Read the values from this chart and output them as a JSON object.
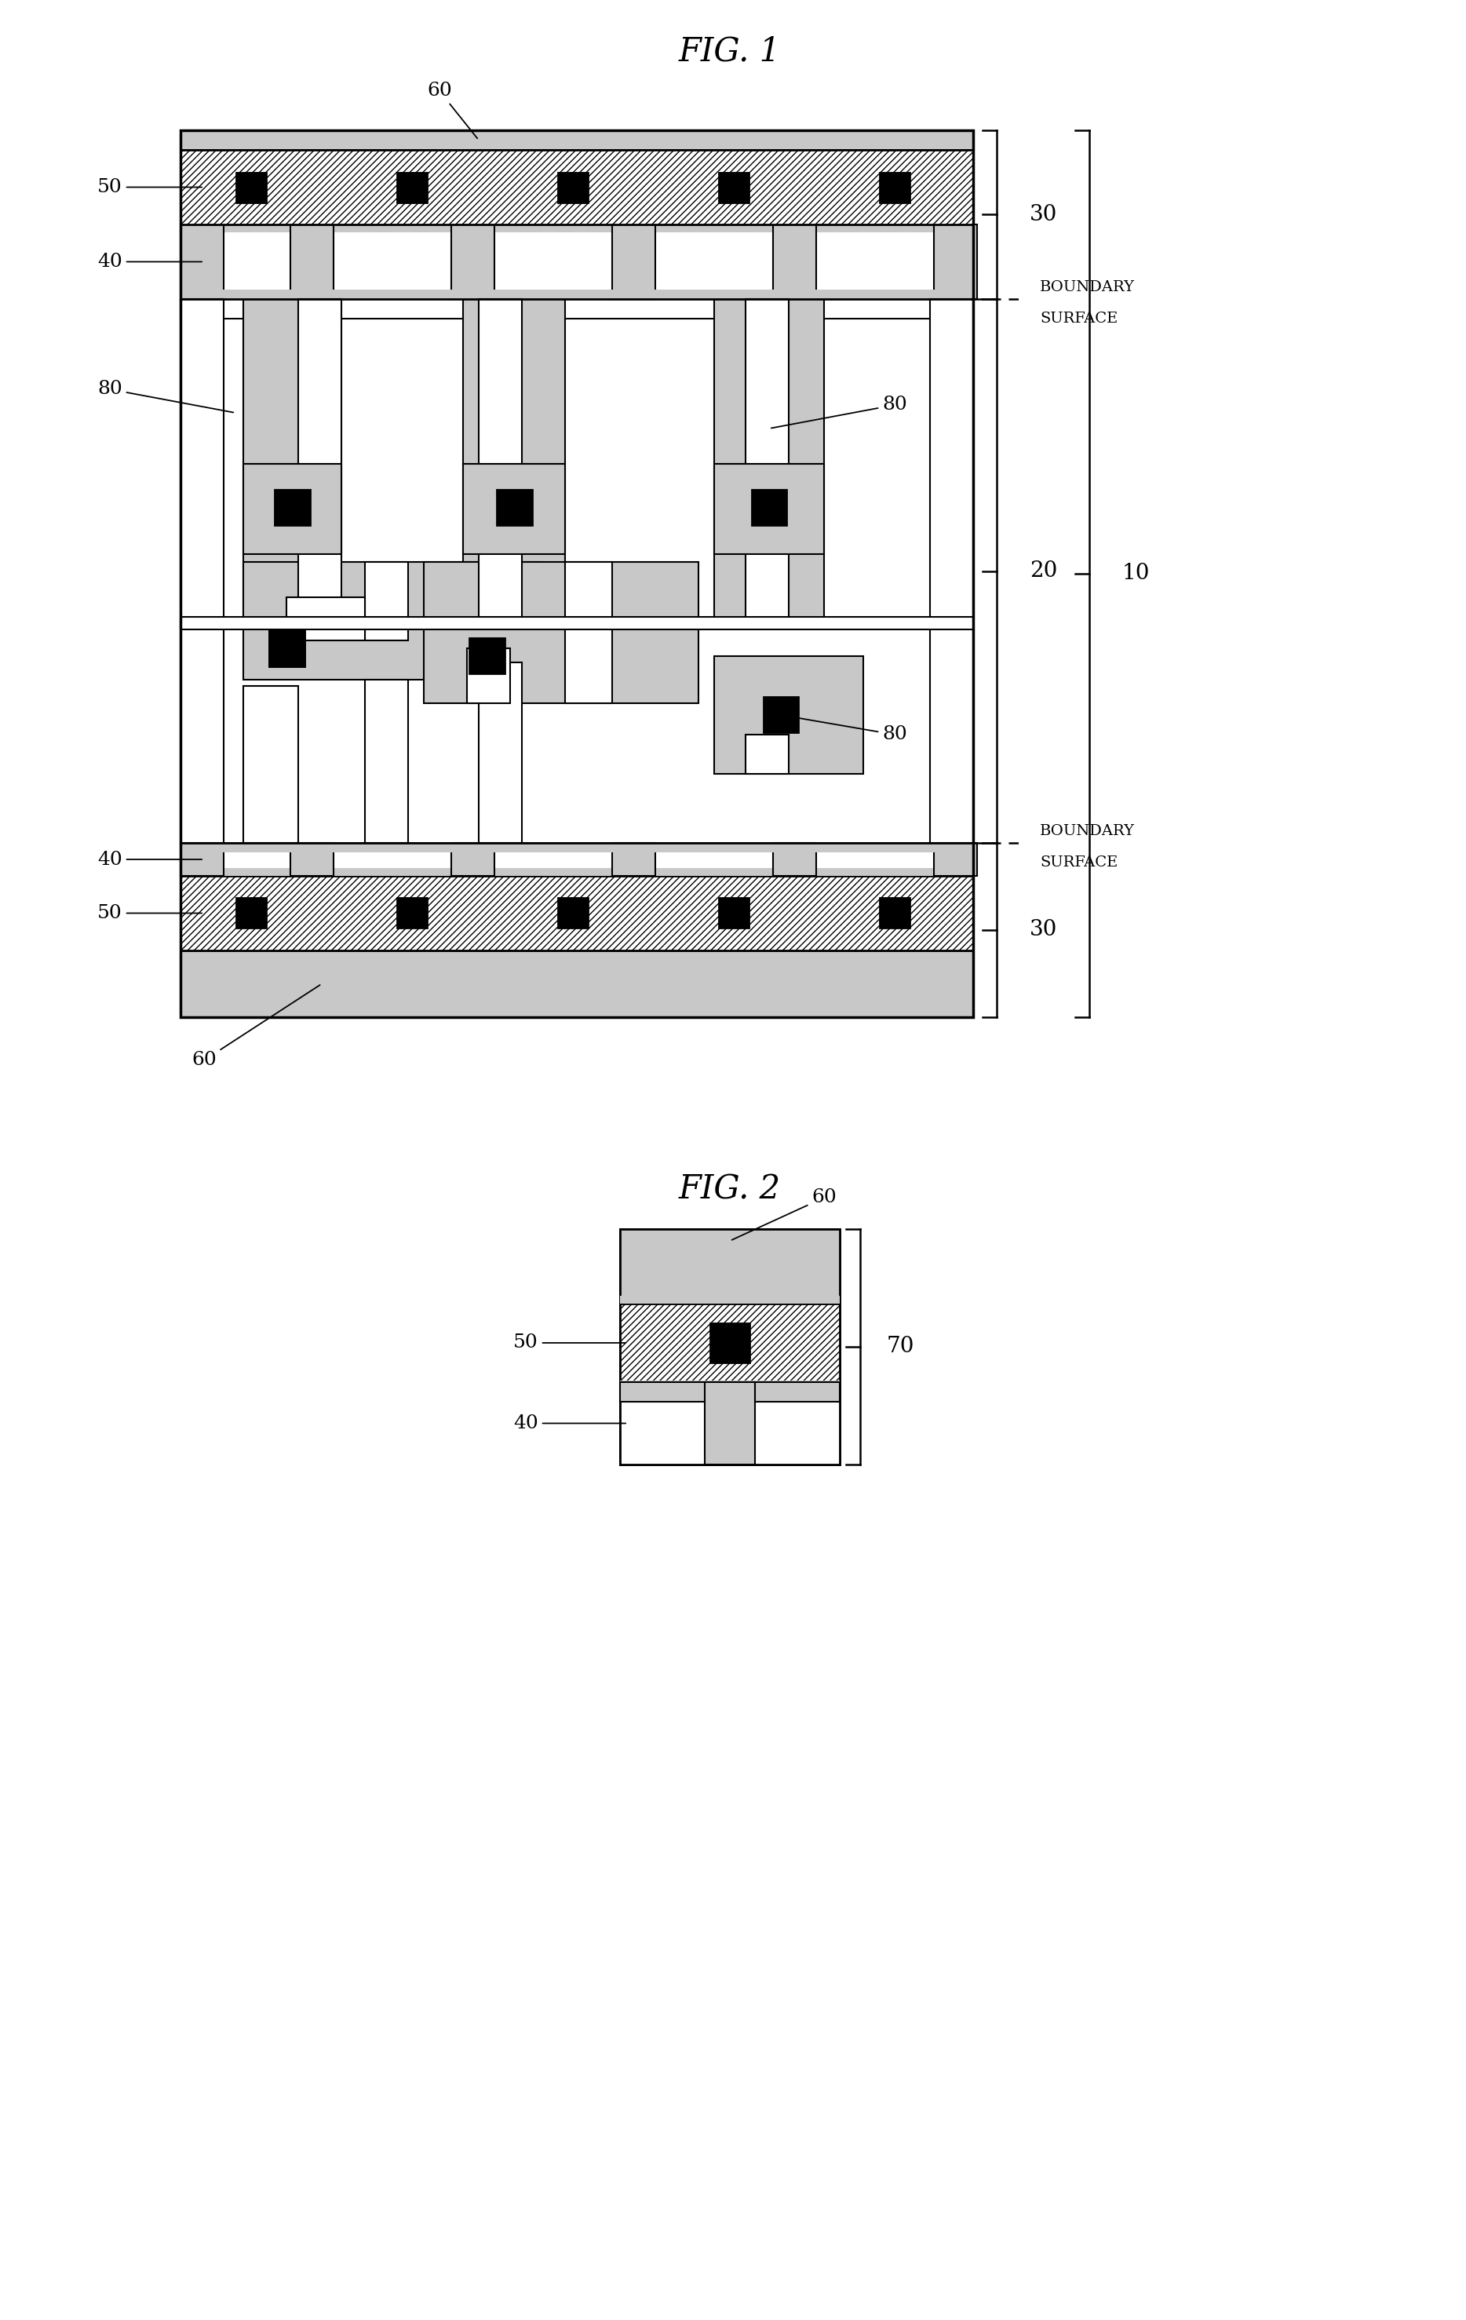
{
  "bg_color": "#ffffff",
  "gray_fill": "#c8c8c8",
  "dark_gray": "#a0a0a0",
  "white_fill": "#ffffff",
  "black_fill": "#000000",
  "fig1_title": "FIG. 1",
  "fig2_title": "FIG. 2",
  "boundary_label": "BOUNDARY\nSURFACE",
  "lw_main": 2.0,
  "lw_thin": 1.5
}
